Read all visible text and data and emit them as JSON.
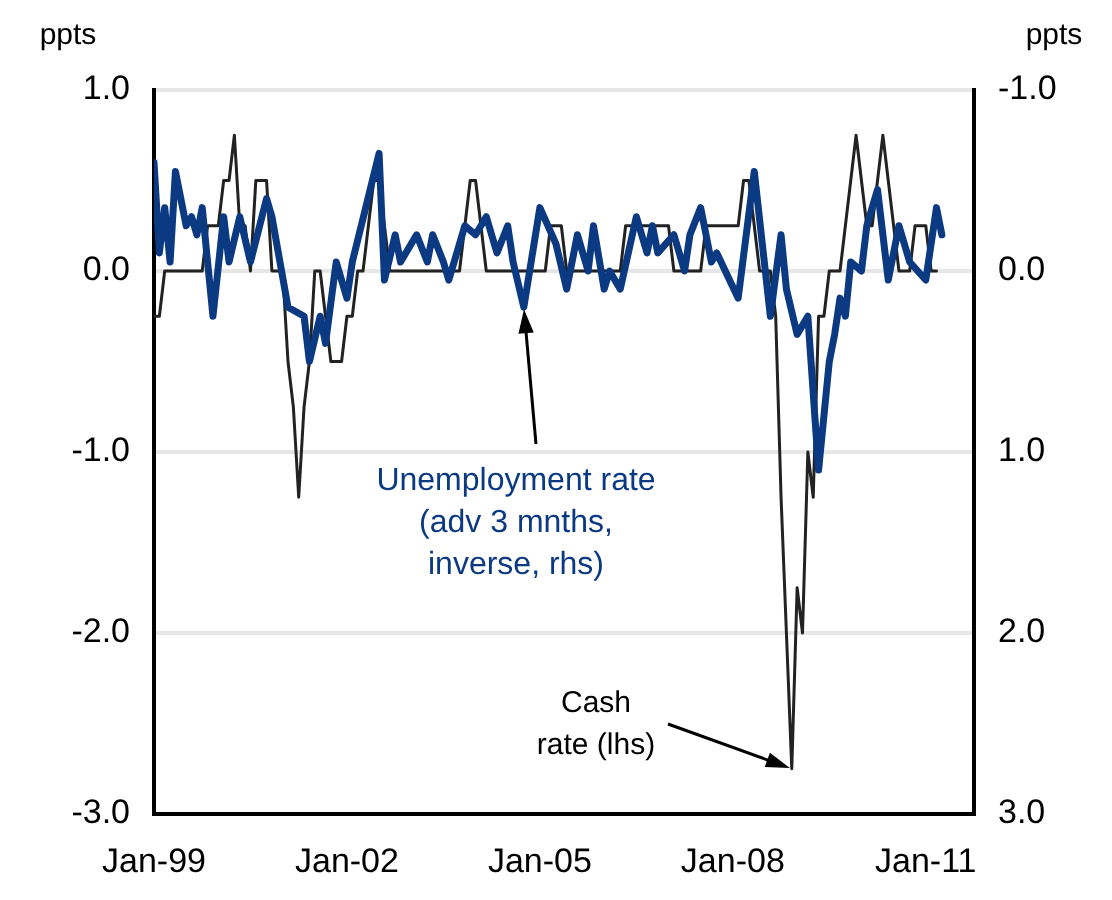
{
  "chart_data": {
    "type": "line",
    "ylabel": "ppts",
    "y2label": "ppts",
    "xlim": [
      "1999-01",
      "2011-10"
    ],
    "xticks": [
      {
        "value": "1999-01",
        "label": "Jan-99"
      },
      {
        "value": "2002-01",
        "label": "Jan-02"
      },
      {
        "value": "2005-01",
        "label": "Jan-05"
      },
      {
        "value": "2008-01",
        "label": "Jan-08"
      },
      {
        "value": "2011-01",
        "label": "Jan-11"
      }
    ],
    "ylim": [
      -3,
      1
    ],
    "yticks": [
      {
        "value": -3,
        "label": "-3.0"
      },
      {
        "value": -2,
        "label": "-2.0"
      },
      {
        "value": -1,
        "label": "-1.0"
      },
      {
        "value": 0,
        "label": "0.0"
      },
      {
        "value": 1,
        "label": "1.0"
      }
    ],
    "y2lim": [
      3,
      -1
    ],
    "y2ticks": [
      {
        "value": 3,
        "label": "3.0"
      },
      {
        "value": 2,
        "label": "2.0"
      },
      {
        "value": 1,
        "label": "1.0"
      },
      {
        "value": 0,
        "label": "0.0"
      },
      {
        "value": -1,
        "label": "-1.0"
      }
    ],
    "grid": "y",
    "annotations": [
      {
        "text": "Unemployment rate\n(adv 3 mnths,\ninverse, rhs)",
        "x": "2004-10",
        "y": -0.2
      },
      {
        "text": "Cash\nrate (lhs)",
        "x": "2008-12",
        "y": -2.75
      }
    ],
    "series": [
      {
        "color": "#222222",
        "x": [
          "1999-01",
          "1999-02",
          "1999-03",
          "1999-04",
          "1999-05",
          "1999-06",
          "1999-07",
          "1999-08",
          "1999-09",
          "1999-10",
          "1999-11",
          "1999-12",
          "2000-01",
          "2000-02",
          "2000-03",
          "2000-04",
          "2000-05",
          "2000-06",
          "2000-07",
          "2000-08",
          "2000-09",
          "2000-10",
          "2000-11",
          "2000-12",
          "2001-01",
          "2001-02",
          "2001-03",
          "2001-04",
          "2001-05",
          "2001-06",
          "2001-07",
          "2001-08",
          "2001-09",
          "2001-10",
          "2001-11",
          "2001-12",
          "2002-01",
          "2002-02",
          "2002-03",
          "2002-04",
          "2002-05",
          "2002-06",
          "2002-07",
          "2002-08",
          "2002-09",
          "2002-10",
          "2002-11",
          "2002-12",
          "2003-01",
          "2003-02",
          "2003-03",
          "2003-04",
          "2003-05",
          "2003-06",
          "2003-07",
          "2003-08",
          "2003-09",
          "2003-10",
          "2003-11",
          "2003-12",
          "2004-01",
          "2004-02",
          "2004-03",
          "2004-04",
          "2004-05",
          "2004-06",
          "2004-07",
          "2004-08",
          "2004-09",
          "2004-10",
          "2004-11",
          "2004-12",
          "2005-01",
          "2005-02",
          "2005-03",
          "2005-04",
          "2005-05",
          "2005-06",
          "2005-07",
          "2005-08",
          "2005-09",
          "2005-10",
          "2005-11",
          "2005-12",
          "2006-01",
          "2006-02",
          "2006-03",
          "2006-04",
          "2006-05",
          "2006-06",
          "2006-07",
          "2006-08",
          "2006-09",
          "2006-10",
          "2006-11",
          "2006-12",
          "2007-01",
          "2007-02",
          "2007-03",
          "2007-04",
          "2007-05",
          "2007-06",
          "2007-07",
          "2007-08",
          "2007-09",
          "2007-10",
          "2007-11",
          "2007-12",
          "2008-01",
          "2008-02",
          "2008-03",
          "2008-04",
          "2008-05",
          "2008-06",
          "2008-07",
          "2008-08",
          "2008-09",
          "2008-10",
          "2008-11",
          "2008-12",
          "2009-01",
          "2009-02",
          "2009-03",
          "2009-04",
          "2009-05",
          "2009-06",
          "2009-07",
          "2009-08",
          "2009-09",
          "2009-10",
          "2009-11",
          "2009-12",
          "2010-01",
          "2010-02",
          "2010-03",
          "2010-04",
          "2010-05",
          "2010-06",
          "2010-07",
          "2010-08",
          "2010-09",
          "2010-10",
          "2010-11",
          "2010-12",
          "2011-01",
          "2011-02",
          "2011-03"
        ],
        "values": [
          -0.25,
          -0.25,
          0,
          0,
          0,
          0,
          0,
          0,
          0,
          0,
          0.25,
          0.25,
          0.25,
          0.5,
          0.5,
          0.75,
          0.25,
          0.25,
          0,
          0.5,
          0.5,
          0.5,
          0,
          0,
          0,
          -0.5,
          -0.75,
          -1.25,
          -0.75,
          -0.5,
          0,
          0,
          -0.25,
          -0.5,
          -0.5,
          -0.5,
          -0.25,
          -0.25,
          0,
          0,
          0.25,
          0.5,
          0.5,
          0.25,
          0,
          0,
          0,
          0,
          0,
          0,
          0,
          0,
          0,
          0,
          0,
          0,
          0,
          0,
          0.25,
          0.5,
          0.5,
          0.25,
          0,
          0,
          0,
          0,
          0,
          0,
          0,
          0,
          0,
          0,
          0,
          0,
          0.25,
          0.25,
          0.25,
          0,
          0,
          0,
          0,
          0,
          0,
          0,
          0,
          0,
          0,
          0,
          0.25,
          0.25,
          0.25,
          0.25,
          0.25,
          0.25,
          0.25,
          0.25,
          0.25,
          0,
          0,
          0,
          0,
          0,
          0,
          0.25,
          0.25,
          0.25,
          0.25,
          0.25,
          0.25,
          0.25,
          0.5,
          0.5,
          0.25,
          0,
          0,
          0,
          -0.25,
          -1.25,
          -2,
          -2.75,
          -1.75,
          -2,
          -1,
          -1.25,
          -0.25,
          -0.25,
          0,
          0,
          0,
          0.25,
          0.5,
          0.75,
          0.5,
          0.25,
          0.25,
          0.5,
          0.75,
          0.5,
          0.25,
          0,
          0,
          0,
          0.25,
          0.25,
          0.25,
          0,
          0
        ]
      },
      {
        "color": "#0b3a82",
        "axis": "y2",
        "x": [
          "1999-01",
          "1999-02",
          "1999-03",
          "1999-04",
          "1999-05",
          "1999-07",
          "1999-08",
          "1999-09",
          "1999-10",
          "1999-12",
          "2000-02",
          "2000-03",
          "2000-05",
          "2000-07",
          "2000-10",
          "2000-11",
          "2001-02",
          "2001-05",
          "2001-06",
          "2001-08",
          "2001-09",
          "2001-11",
          "2002-01",
          "2002-02",
          "2002-07",
          "2002-08",
          "2002-10",
          "2002-11",
          "2003-02",
          "2003-04",
          "2003-05",
          "2003-07",
          "2003-08",
          "2003-11",
          "2004-01",
          "2004-03",
          "2004-05",
          "2004-07",
          "2004-08",
          "2004-10",
          "2005-01",
          "2005-04",
          "2005-06",
          "2005-08",
          "2005-10",
          "2005-11",
          "2006-01",
          "2006-02",
          "2006-04",
          "2006-07",
          "2006-09",
          "2006-10",
          "2006-11",
          "2007-02",
          "2007-04",
          "2007-05",
          "2007-07",
          "2007-09",
          "2007-10",
          "2008-02",
          "2008-05",
          "2008-08",
          "2008-10",
          "2008-11",
          "2009-01",
          "2009-03",
          "2009-05",
          "2009-07",
          "2009-08",
          "2009-09",
          "2009-10",
          "2009-11",
          "2010-01",
          "2010-02",
          "2010-04",
          "2010-06",
          "2010-08",
          "2010-10",
          "2011-01",
          "2011-03",
          "2011-04"
        ],
        "values": [
          -0.6,
          -0.1,
          -0.35,
          -0.05,
          -0.55,
          -0.25,
          -0.3,
          -0.2,
          -0.35,
          0.25,
          -0.3,
          -0.05,
          -0.3,
          -0.05,
          -0.4,
          -0.3,
          0.2,
          0.25,
          0.5,
          0.25,
          0.4,
          -0.05,
          0.15,
          -0.05,
          -0.65,
          0.05,
          -0.2,
          -0.05,
          -0.2,
          -0.05,
          -0.2,
          -0.05,
          0.05,
          -0.25,
          -0.2,
          -0.3,
          -0.1,
          -0.25,
          -0.05,
          0.2,
          -0.35,
          -0.15,
          0.1,
          -0.2,
          0,
          -0.25,
          0.1,
          0,
          0.1,
          -0.3,
          -0.1,
          -0.25,
          -0.1,
          -0.2,
          0,
          -0.2,
          -0.35,
          -0.05,
          -0.1,
          0.15,
          -0.55,
          0.25,
          -0.2,
          0.1,
          0.35,
          0.25,
          1.1,
          0.5,
          0.35,
          0.15,
          0.25,
          -0.05,
          0,
          -0.25,
          -0.45,
          0.05,
          -0.25,
          -0.05,
          0.05,
          -0.35,
          -0.2
        ]
      }
    ]
  }
}
